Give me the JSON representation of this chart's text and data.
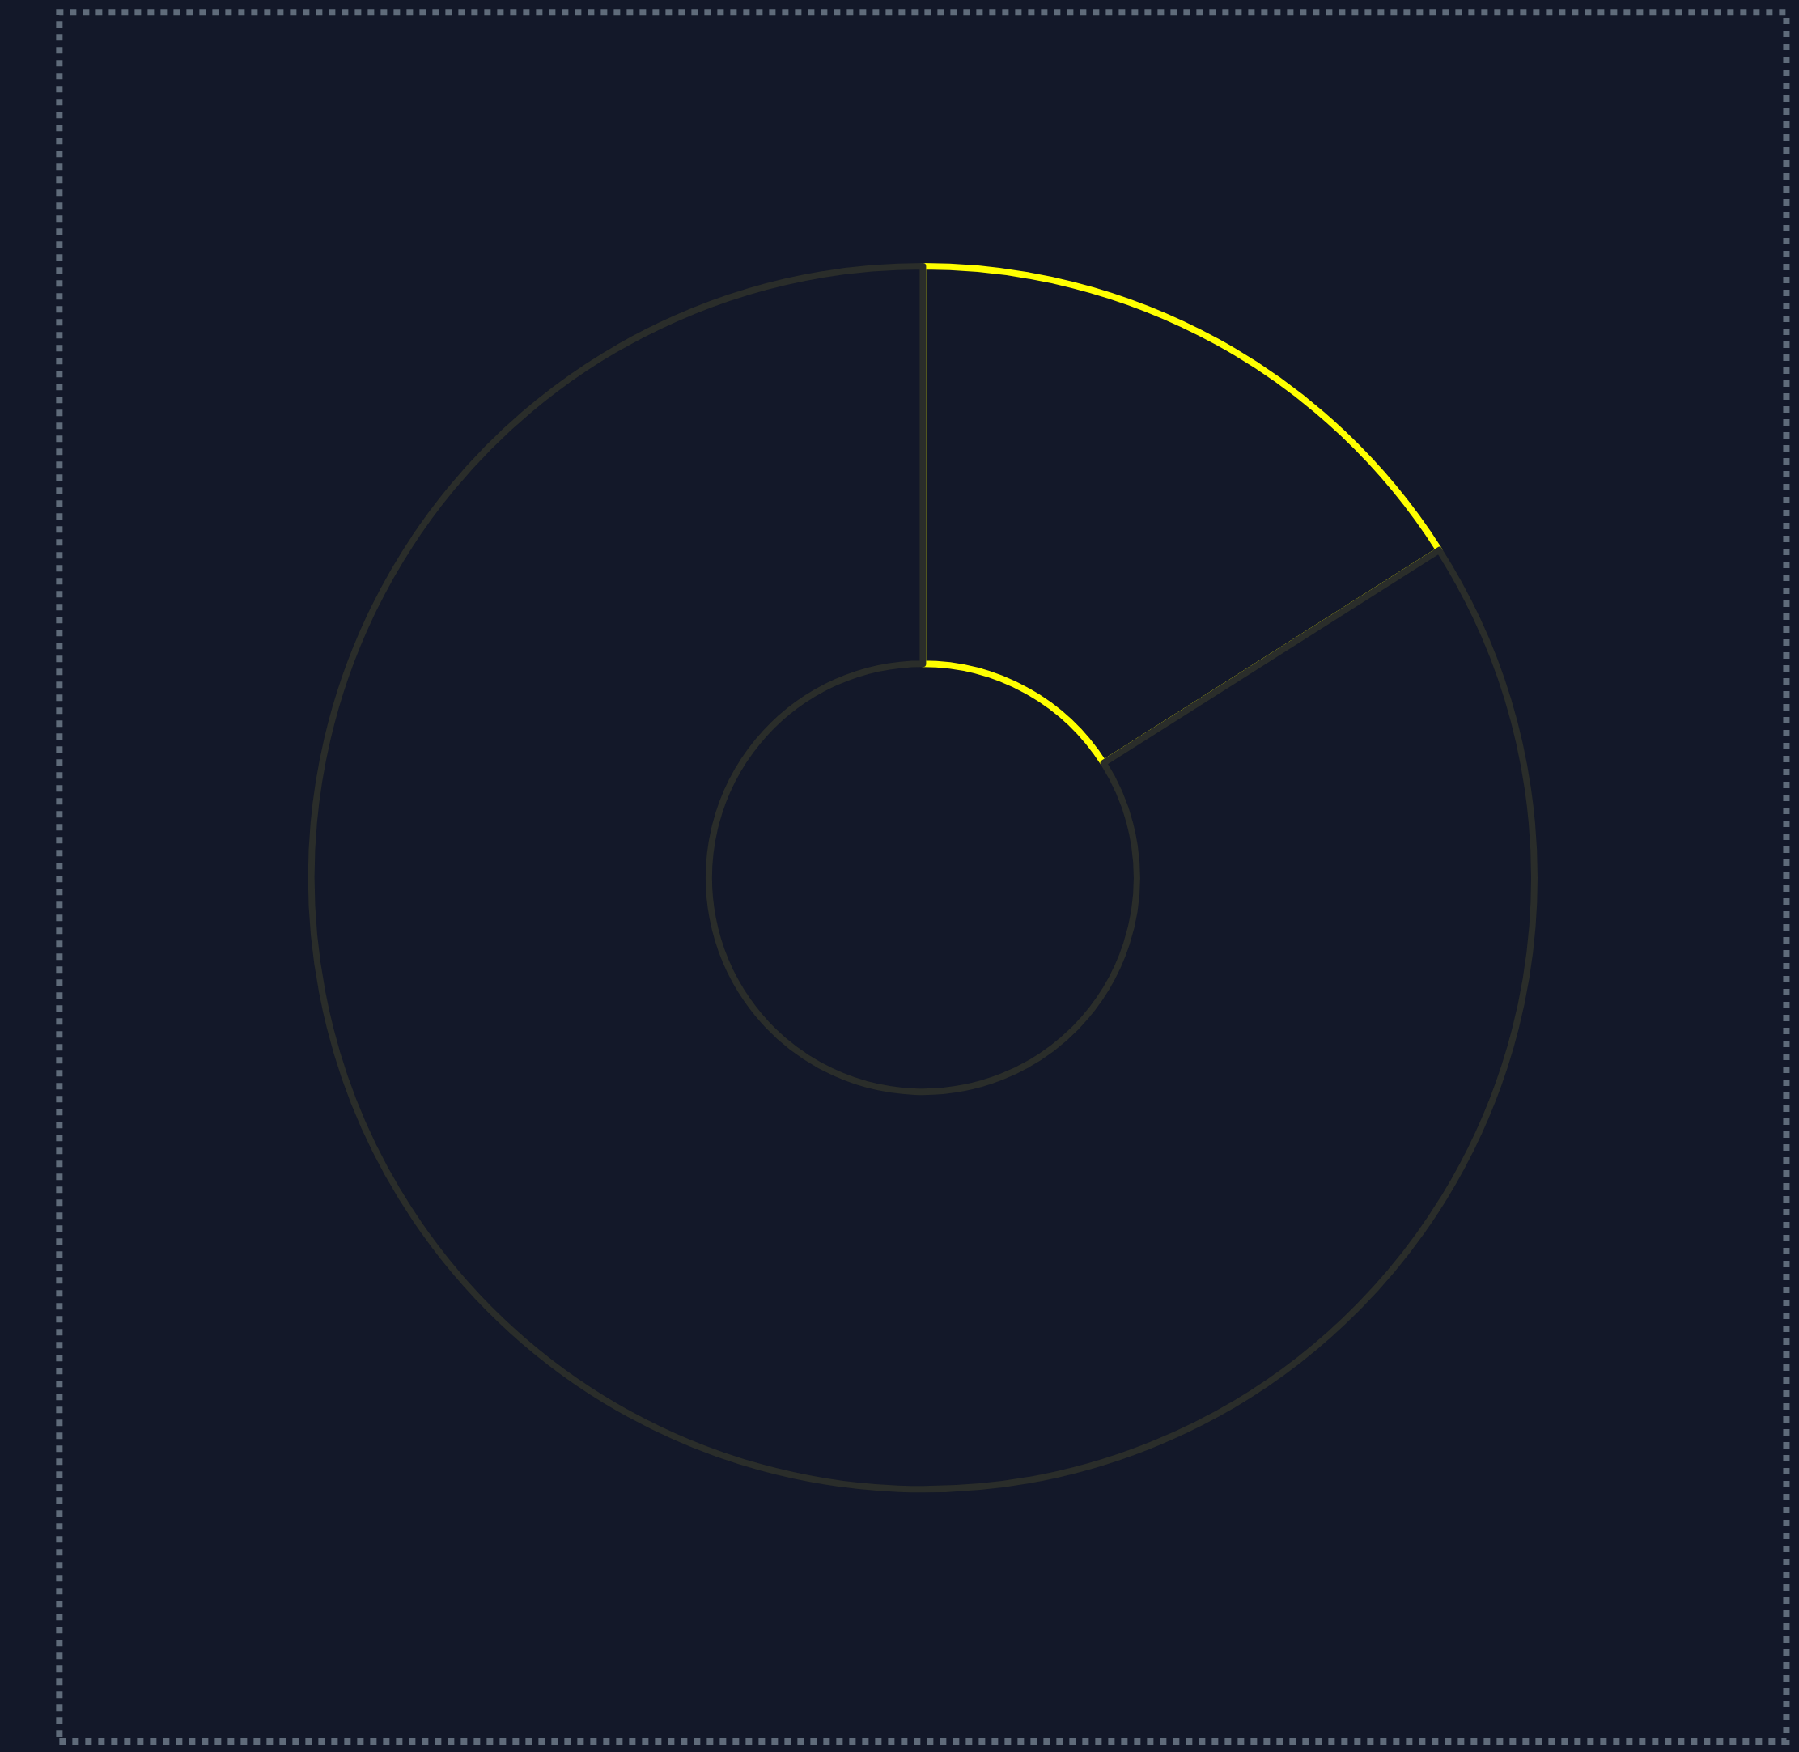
{
  "chart_data": {
    "type": "donut",
    "categories": [
      null,
      null
    ],
    "values": [
      16,
      84
    ],
    "colors": [
      "#ffff00",
      "#2a2d2a"
    ]
  }
}
